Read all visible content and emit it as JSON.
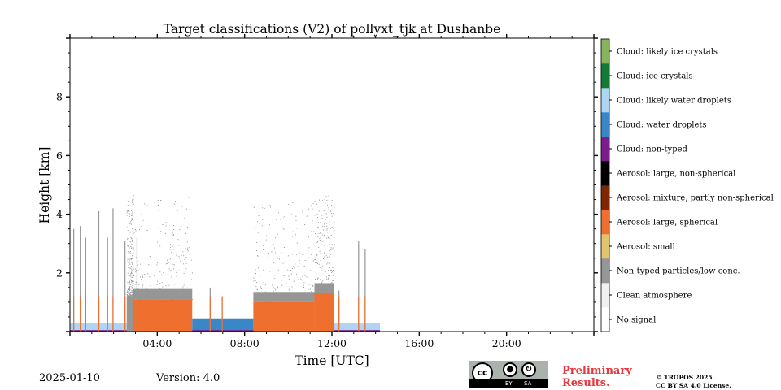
{
  "chart_data": {
    "type": "heatmap",
    "title": "Target classifications (V2) of pollyxt_tjk at Dushanbe",
    "xlabel": "Time [UTC]",
    "ylabel": "Height [km]",
    "xlim_hours": [
      0,
      24
    ],
    "ylim_km": [
      0,
      10
    ],
    "xticks": [
      {
        "value": 4,
        "label": "04:00"
      },
      {
        "value": 8,
        "label": "08:00"
      },
      {
        "value": 12,
        "label": "12:00"
      },
      {
        "value": 16,
        "label": "16:00"
      },
      {
        "value": 20,
        "label": "20:00"
      }
    ],
    "yticks": [
      {
        "value": 2,
        "label": "2"
      },
      {
        "value": 4,
        "label": "4"
      },
      {
        "value": 6,
        "label": "6"
      },
      {
        "value": 8,
        "label": "8"
      }
    ],
    "colorbar": [
      {
        "label": "No signal",
        "color": "#ffffff"
      },
      {
        "label": "Clean atmosphere",
        "color": "#f0f0f0"
      },
      {
        "label": "Non-typed particles/low conc.",
        "color": "#969696"
      },
      {
        "label": "Aerosol: small",
        "color": "#e1c56e"
      },
      {
        "label": "Aerosol: large, spherical",
        "color": "#ef6f2e"
      },
      {
        "label": "Aerosol: mixture, partly non-spherical",
        "color": "#7f2704"
      },
      {
        "label": "Aerosol: large, non-spherical",
        "color": "#000000"
      },
      {
        "label": "Cloud: non-typed",
        "color": "#7b1e8c"
      },
      {
        "label": "Cloud: water droplets",
        "color": "#3a87c8"
      },
      {
        "label": "Cloud: likely water droplets",
        "color": "#afd5f2"
      },
      {
        "label": "Cloud: ice crystals",
        "color": "#137a35"
      },
      {
        "label": "Cloud: likely ice crystals",
        "color": "#86b35e"
      }
    ],
    "segments": [
      {
        "start": 0.0,
        "end": 2.6,
        "class": "Cloud: likely water droplets",
        "top_km": 0.3
      },
      {
        "start": 2.6,
        "end": 2.9,
        "class": "Non-typed particles/low conc.",
        "top_km": 1.2
      },
      {
        "start": 2.9,
        "end": 5.6,
        "class": "Aerosol: large, spherical",
        "top_km": 1.1
      },
      {
        "start": 5.6,
        "end": 8.4,
        "class": "Cloud: water droplets",
        "top_km": 0.45
      },
      {
        "start": 8.4,
        "end": 11.2,
        "class": "Aerosol: large, spherical",
        "top_km": 1.0
      },
      {
        "start": 11.2,
        "end": 12.1,
        "class": "Aerosol: large, spherical",
        "top_km": 1.3
      },
      {
        "start": 12.1,
        "end": 14.2,
        "class": "Cloud: likely water droplets",
        "top_km": 0.3
      }
    ],
    "profiles": [
      {
        "time": 0.15,
        "top_km": 3.5
      },
      {
        "time": 0.45,
        "top_km": 3.6
      },
      {
        "time": 0.7,
        "top_km": 3.2
      },
      {
        "time": 1.3,
        "top_km": 4.1
      },
      {
        "time": 1.7,
        "top_km": 3.2
      },
      {
        "time": 1.95,
        "top_km": 4.2
      },
      {
        "time": 2.5,
        "top_km": 3.1
      },
      {
        "time": 3.05,
        "top_km": 3.2
      },
      {
        "time": 6.4,
        "top_km": 1.5
      },
      {
        "time": 6.95,
        "top_km": 1.2
      },
      {
        "time": 12.3,
        "top_km": 1.4
      },
      {
        "time": 13.2,
        "top_km": 3.1
      },
      {
        "time": 13.5,
        "top_km": 2.8
      }
    ]
  },
  "footer": {
    "date": "2025-01-10",
    "version": "Version: 4.0",
    "license_badge": {
      "cc": "cc",
      "by": "BY",
      "sa": "SA"
    },
    "preliminary_line1": "Preliminary",
    "preliminary_line2": "Results.",
    "copyright_line1": "© TROPOS 2025.",
    "copyright_line2": "CC BY SA 4.0 License."
  }
}
